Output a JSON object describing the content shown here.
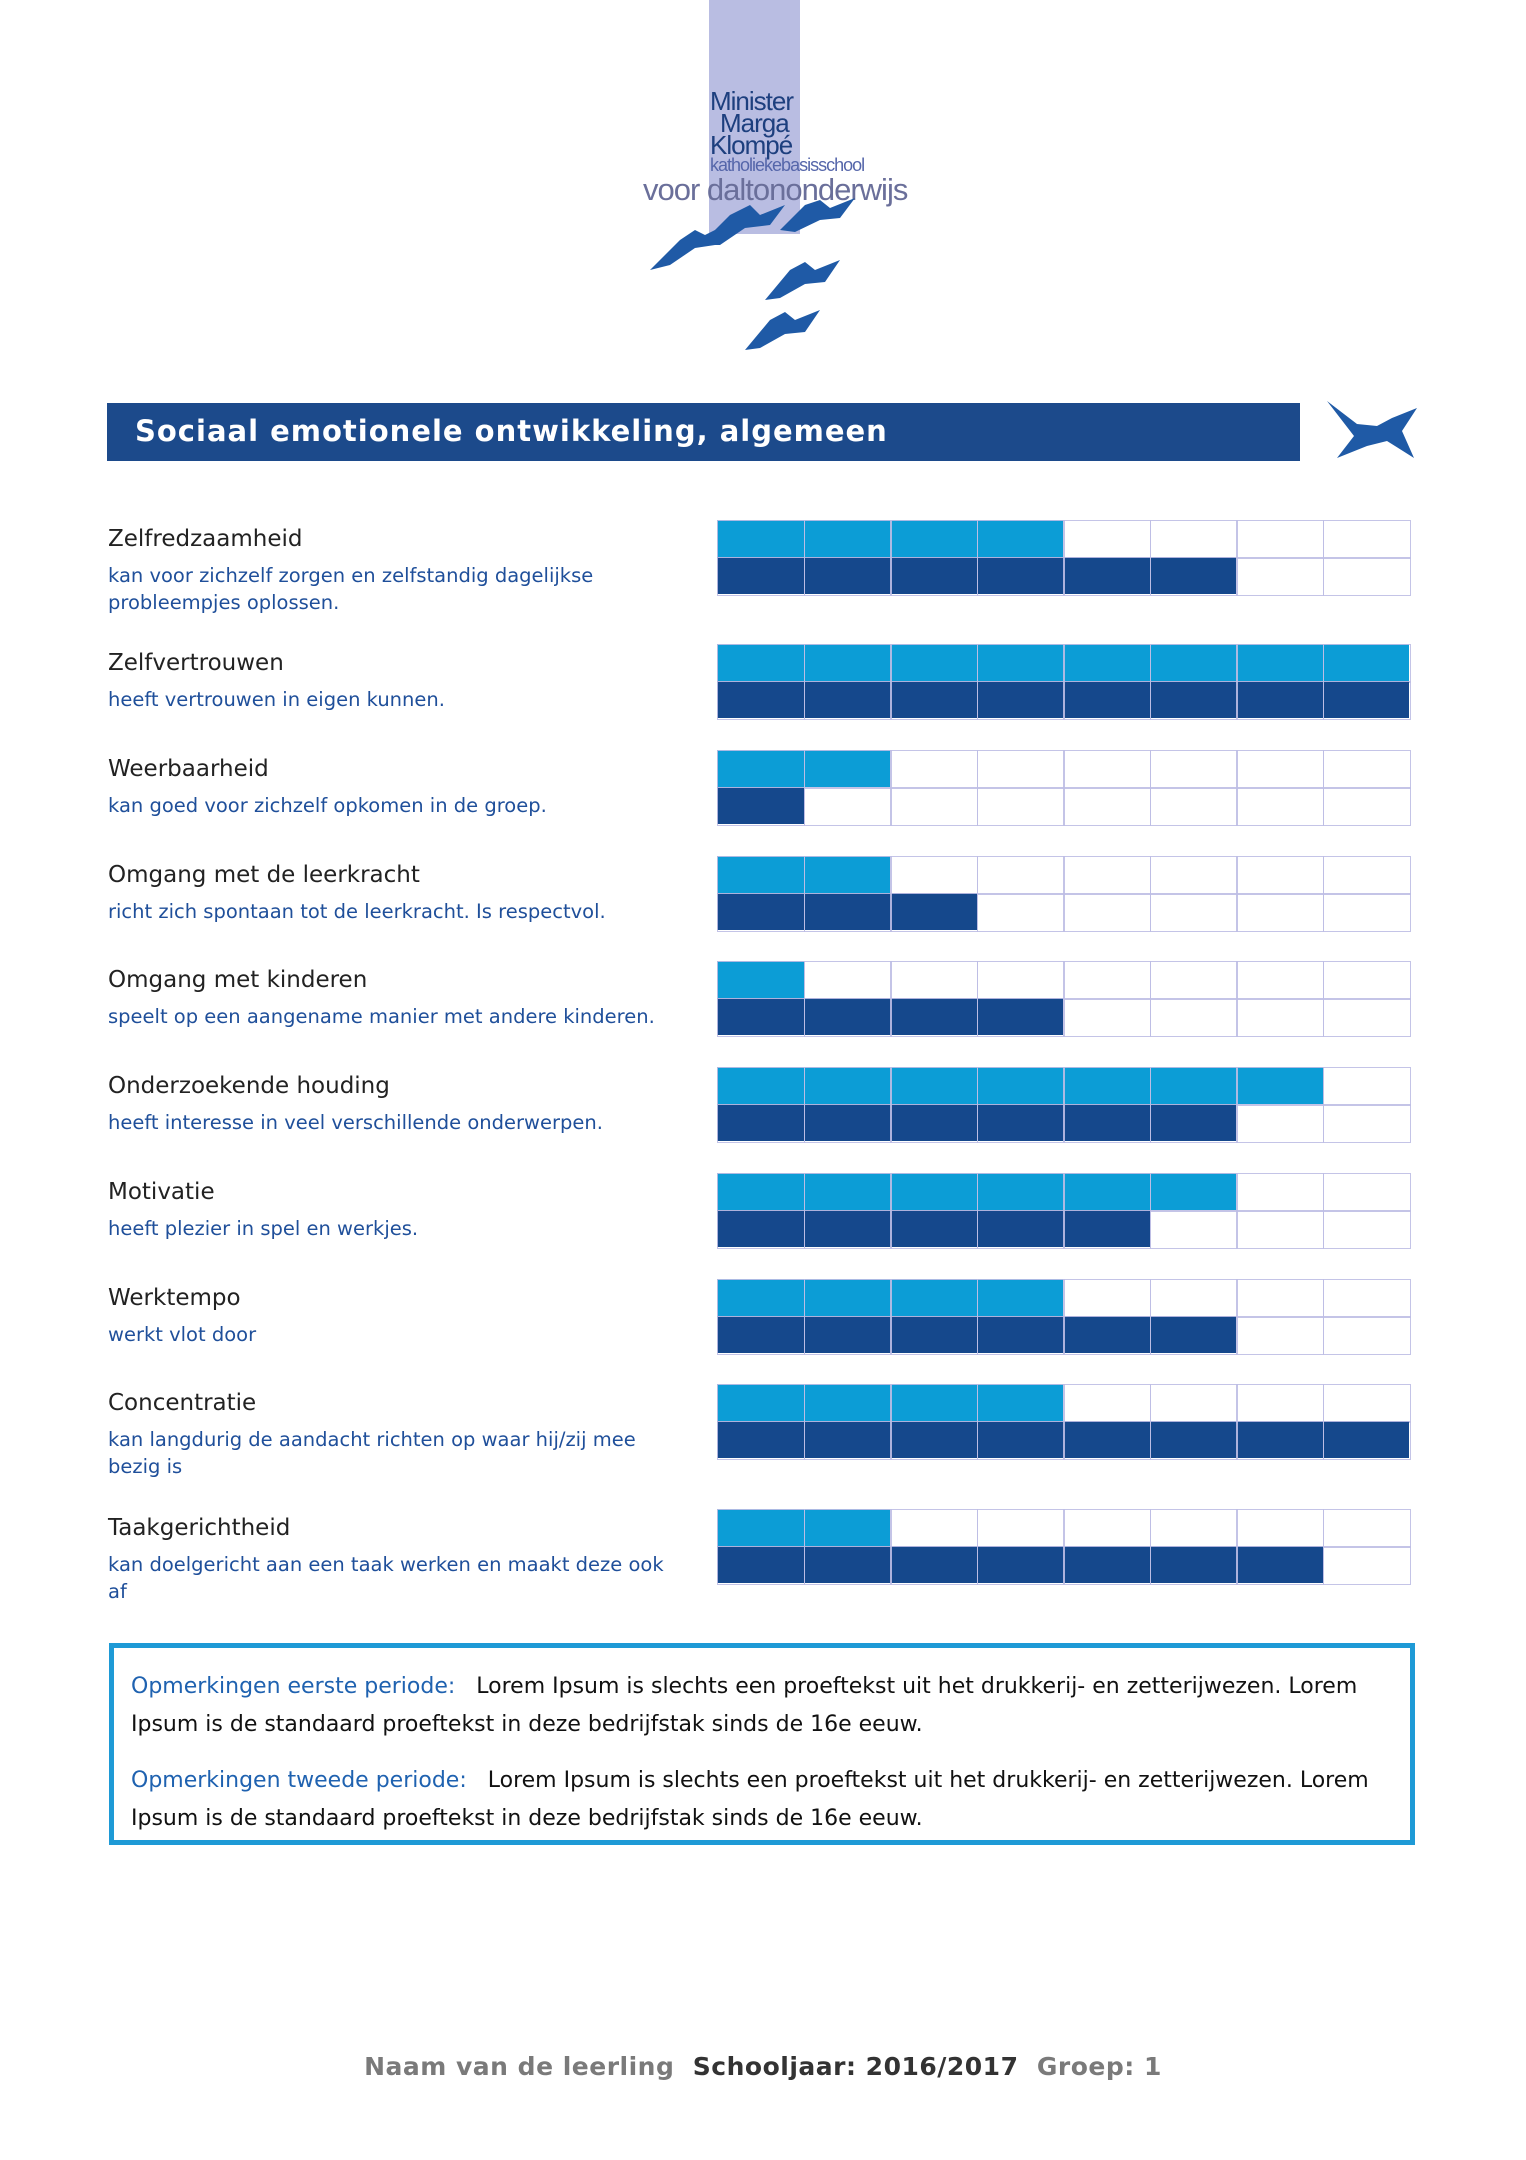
{
  "logo": {
    "line1": "Minister",
    "line2": "Marga",
    "line3": "Klompé",
    "line4": "katholieke basisschool",
    "line5": "voor daltononderwijs"
  },
  "section_title": "Sociaal emotionele ontwikkeling, algemeen",
  "rating_xlim": [
    0,
    8
  ],
  "items": [
    {
      "label": "Zelfredzaamheid",
      "description": "kan voor zichzelf zorgen en zelfstandig dagelijkse probleempjes oplossen.",
      "period1": 4,
      "period2": 6
    },
    {
      "label": "Zelfvertrouwen",
      "description": "heeft vertrouwen in eigen kunnen.",
      "period1": 8,
      "period2": 8
    },
    {
      "label": "Weerbaarheid",
      "description": "kan goed voor zichzelf opkomen in de groep.",
      "period1": 2,
      "period2": 1
    },
    {
      "label": "Omgang met de leerkracht",
      "description": "richt zich spontaan tot de leerkracht. Is respectvol.",
      "period1": 2,
      "period2": 3
    },
    {
      "label": "Omgang met kinderen",
      "description": "speelt op een aangename manier met andere kinderen.",
      "period1": 1,
      "period2": 4
    },
    {
      "label": "Onderzoekende houding",
      "description": "heeft interesse in veel verschillende onderwerpen.",
      "period1": 7,
      "period2": 6
    },
    {
      "label": "Motivatie",
      "description": "heeft plezier in spel en werkjes.",
      "period1": 6,
      "period2": 5
    },
    {
      "label": "Werktempo",
      "description": "werkt vlot door",
      "period1": 4,
      "period2": 6
    },
    {
      "label": "Concentratie",
      "description": "kan langdurig de aandacht richten op waar hij/zij mee bezig is",
      "period1": 4,
      "period2": 8
    },
    {
      "label": "Taakgerichtheid",
      "description": "kan doelgericht aan een taak werken en maakt deze ook af",
      "period1": 2,
      "period2": 7
    }
  ],
  "remarks": [
    {
      "label": "Opmerkingen eerste periode:",
      "text": "Lorem Ipsum is slechts een proeftekst uit het drukkerij- en zetterijwezen. Lorem Ipsum is de standaard proeftekst in deze bedrijfstak sinds de 16e eeuw."
    },
    {
      "label": "Opmerkingen tweede periode:",
      "text": "Lorem Ipsum is slechts een proeftekst uit het drukkerij- en zetterijwezen. Lorem Ipsum is de standaard proeftekst in deze bedrijfstak sinds de 16e eeuw."
    }
  ],
  "footer": {
    "name": "Naam van de leerling",
    "year": "Schooljaar: 2016/2017",
    "group": "Groep: 1"
  }
}
